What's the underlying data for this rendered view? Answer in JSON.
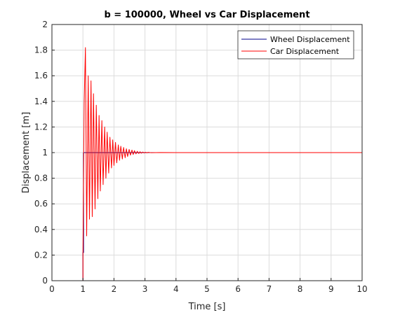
{
  "chart_data": {
    "type": "line",
    "title": "b = 100000, Wheel vs Car Displacement",
    "xlabel": "Time [s]",
    "ylabel": "Displacement [m]",
    "xlim": [
      0,
      10
    ],
    "ylim": [
      0,
      2
    ],
    "xticks": [
      0,
      1,
      2,
      3,
      4,
      5,
      6,
      7,
      8,
      9,
      10
    ],
    "yticks": [
      0,
      0.2,
      0.4,
      0.6,
      0.8,
      1,
      1.2,
      1.4,
      1.6,
      1.8,
      2
    ],
    "xtick_labels": [
      "0",
      "1",
      "2",
      "3",
      "4",
      "5",
      "6",
      "7",
      "8",
      "9",
      "10"
    ],
    "ytick_labels": [
      "0",
      "0.2",
      "0.4",
      "0.6",
      "0.8",
      "1",
      "1.2",
      "1.4",
      "1.6",
      "1.8",
      "2"
    ],
    "grid": true,
    "legend_location": "top-right",
    "series": [
      {
        "name": "Wheel Displacement",
        "color": "#00008b",
        "x": [
          0,
          1,
          1.0,
          1.02,
          1.02,
          10
        ],
        "y": [
          0,
          0,
          0.22,
          0.22,
          1,
          1
        ]
      },
      {
        "name": "Car Displacement",
        "color": "#ff0000",
        "x": [
          0,
          1,
          1.0,
          1.04,
          1.08,
          1.12,
          1.17,
          1.21,
          1.26,
          1.3,
          1.34,
          1.39,
          1.43,
          1.48,
          1.52,
          1.56,
          1.61,
          1.65,
          1.7,
          1.74,
          1.78,
          1.83,
          1.87,
          1.92,
          1.96,
          2.0,
          2.05,
          2.09,
          2.14,
          2.18,
          2.22,
          2.27,
          2.31,
          2.36,
          2.4,
          2.44,
          2.49,
          2.53,
          2.58,
          2.62,
          2.66,
          2.71,
          2.75,
          2.8,
          2.84,
          2.88,
          2.93,
          2.97,
          3.02,
          3.06,
          3.1,
          3.2,
          3.5,
          4.0,
          4.4,
          10
        ],
        "y": [
          0,
          0,
          0.2,
          1.4,
          1.82,
          0.35,
          1.6,
          0.48,
          1.56,
          0.5,
          1.46,
          0.56,
          1.37,
          0.64,
          1.29,
          0.7,
          1.25,
          0.75,
          1.2,
          0.8,
          1.16,
          0.84,
          1.12,
          0.88,
          1.1,
          0.9,
          1.08,
          0.92,
          1.06,
          0.94,
          1.05,
          0.95,
          1.04,
          0.96,
          1.03,
          0.97,
          1.025,
          0.98,
          1.02,
          0.985,
          1.015,
          0.99,
          1.01,
          0.993,
          1.007,
          0.995,
          1.005,
          0.997,
          1.003,
          0.998,
          1.002,
          0.999,
          1.001,
          1.0,
          1.0,
          1
        ]
      }
    ]
  }
}
